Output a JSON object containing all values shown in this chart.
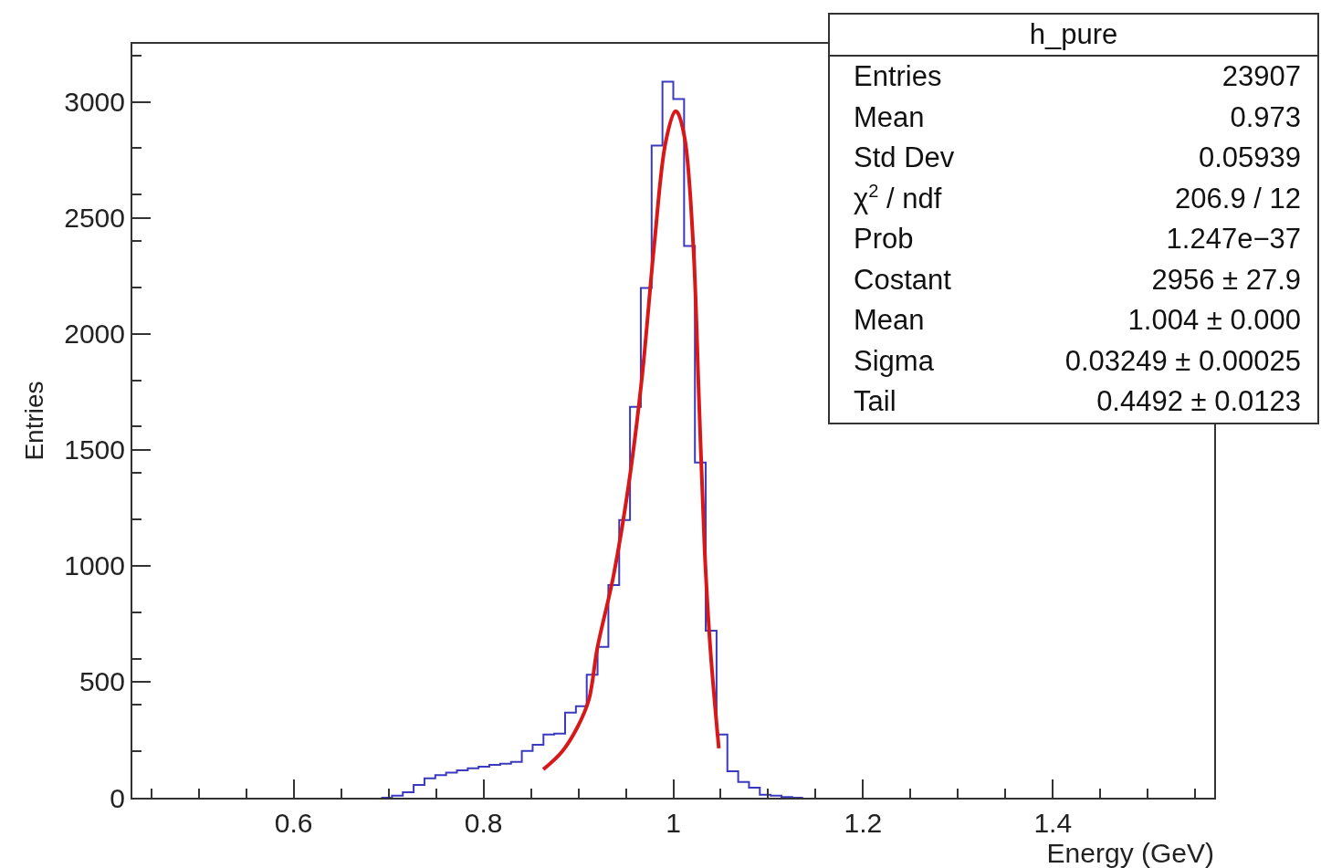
{
  "chart_data": {
    "type": "histogram",
    "xlabel": "Energy (GeV)",
    "ylabel": "Entries",
    "bins": [
      0.6922,
      0.7036,
      0.715,
      0.7264,
      0.7378,
      0.7492,
      0.7606,
      0.772,
      0.7834,
      0.7948,
      0.8062,
      0.8176,
      0.829,
      0.8404,
      0.8518,
      0.8632,
      0.8746,
      0.886,
      0.8974,
      0.9088,
      0.9202,
      0.9316,
      0.943,
      0.9544,
      0.9658,
      0.9772,
      0.9886,
      1.0,
      1.0114,
      1.0228,
      1.0342,
      1.0456,
      1.057,
      1.0684,
      1.0798,
      1.0912,
      1.1026,
      1.114,
      1.1254,
      1.1368
    ],
    "values": [
      0,
      9,
      24,
      55,
      84,
      97,
      108,
      118,
      127,
      134,
      142,
      147,
      154,
      202,
      228,
      272,
      276,
      367,
      394,
      530,
      650,
      917,
      1197,
      1685,
      2197,
      2811,
      3087,
      3012,
      2378,
      1445,
      720,
      272,
      114,
      68,
      43,
      13,
      9,
      3,
      0
    ],
    "color": "#3a3ac0",
    "series": [
      {
        "type": "line",
        "color": "#d81818",
        "x": [
          0.863,
          0.883,
          0.899,
          0.911,
          0.92,
          0.937,
          0.953,
          0.967,
          0.98,
          0.992,
          1.002,
          1.004,
          1.012,
          1.021,
          1.027,
          1.033,
          1.039,
          1.048
        ],
        "values": [
          122,
          200,
          304,
          422,
          646,
          957,
          1350,
          1811,
          2386,
          2827,
          2959,
          2956,
          2844,
          2386,
          1728,
          1072,
          646,
          213
        ]
      }
    ],
    "xlim": [
      0.43,
      1.57
    ],
    "xticks": [
      0.6,
      0.8,
      1,
      1.2,
      1.4
    ],
    "ylim": [
      0,
      3250
    ],
    "yticks": [
      0,
      500,
      1000,
      1500,
      2000,
      2500,
      3000
    ],
    "grid": false,
    "marker": "none",
    "line_style": "solid",
    "annotations": [
      "h_pure",
      "Entries",
      "23907",
      "Mean",
      "0.973",
      "Std Dev",
      "0.05939",
      "χ$^{2}$ / ndf",
      "206.9 / 12",
      "Prob",
      "1.247e−37",
      "Costant",
      "2956 ± 27.9",
      "Mean",
      "1.004 ± 0.000",
      "Sigma",
      "0.03249 ± 0.00025",
      "Tail",
      "0.4492 ± 0.0123"
    ]
  }
}
